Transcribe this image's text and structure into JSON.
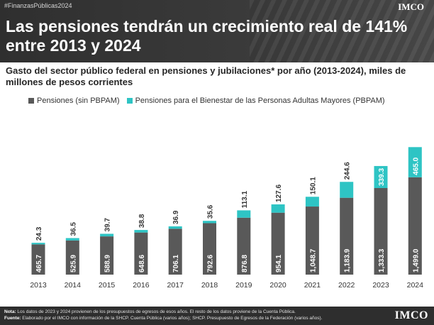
{
  "header": {
    "hashtag": "#FinanzasPúblicas2024",
    "logo": "IMCO",
    "headline": "Las pensiones tendrán un crecimiento real de 141% entre 2013 y 2024"
  },
  "subtitle": "Gasto del sector público federal en pensiones y jubilaciones* por año (2013-2024), miles de millones de pesos corrientes",
  "footer": {
    "note_label": "Nota:",
    "note_text": "Los datos de 2023 y 2024 provienen de los presupuestos de egresos de esos años. El resto de los datos proviene de la Cuenta Pública.",
    "source_label": "Fuente:",
    "source_text": "Elaborado por el IMCO con información de la SHCP. Cuenta Pública (varios años); SHCP. Presupuesto de Egresos de la Federación (varios años).",
    "logo": "IMCO"
  },
  "colors": {
    "pensiones": "#595959",
    "pbpam": "#2ec4c4",
    "text": "#333333"
  },
  "chart_data": {
    "type": "bar",
    "stacked": true,
    "categories": [
      "2013",
      "2014",
      "2015",
      "2016",
      "2017",
      "2018",
      "2019",
      "2020",
      "2021",
      "2022",
      "2023",
      "2024"
    ],
    "series": [
      {
        "name": "Pensiones (sin PBPAM)",
        "values": [
          465.7,
          525.9,
          588.9,
          648.6,
          706.1,
          792.6,
          876.8,
          954.1,
          1048.7,
          1183.9,
          1333.3,
          1499.0
        ],
        "labels": [
          "465.7",
          "525.9",
          "588.9",
          "648.6",
          "706.1",
          "792.6",
          "876.8",
          "954.1",
          "1,048.7",
          "1,183.9",
          "1,333.3",
          "1,499.0"
        ]
      },
      {
        "name": "Pensiones para el Bienestar de las Personas Adultas Mayores (PBPAM)",
        "values": [
          24.3,
          36.5,
          39.7,
          38.8,
          36.9,
          35.6,
          113.1,
          127.6,
          150.1,
          244.6,
          339.3,
          465.0
        ],
        "labels": [
          "24.3",
          "36.5",
          "39.7",
          "38.8",
          "36.9",
          "35.6",
          "113.1",
          "127.6",
          "150.1",
          "244.6",
          "339.3",
          "465.0"
        ]
      }
    ],
    "legend_position": "top-left",
    "grid": false,
    "yaxis_visible": false
  }
}
